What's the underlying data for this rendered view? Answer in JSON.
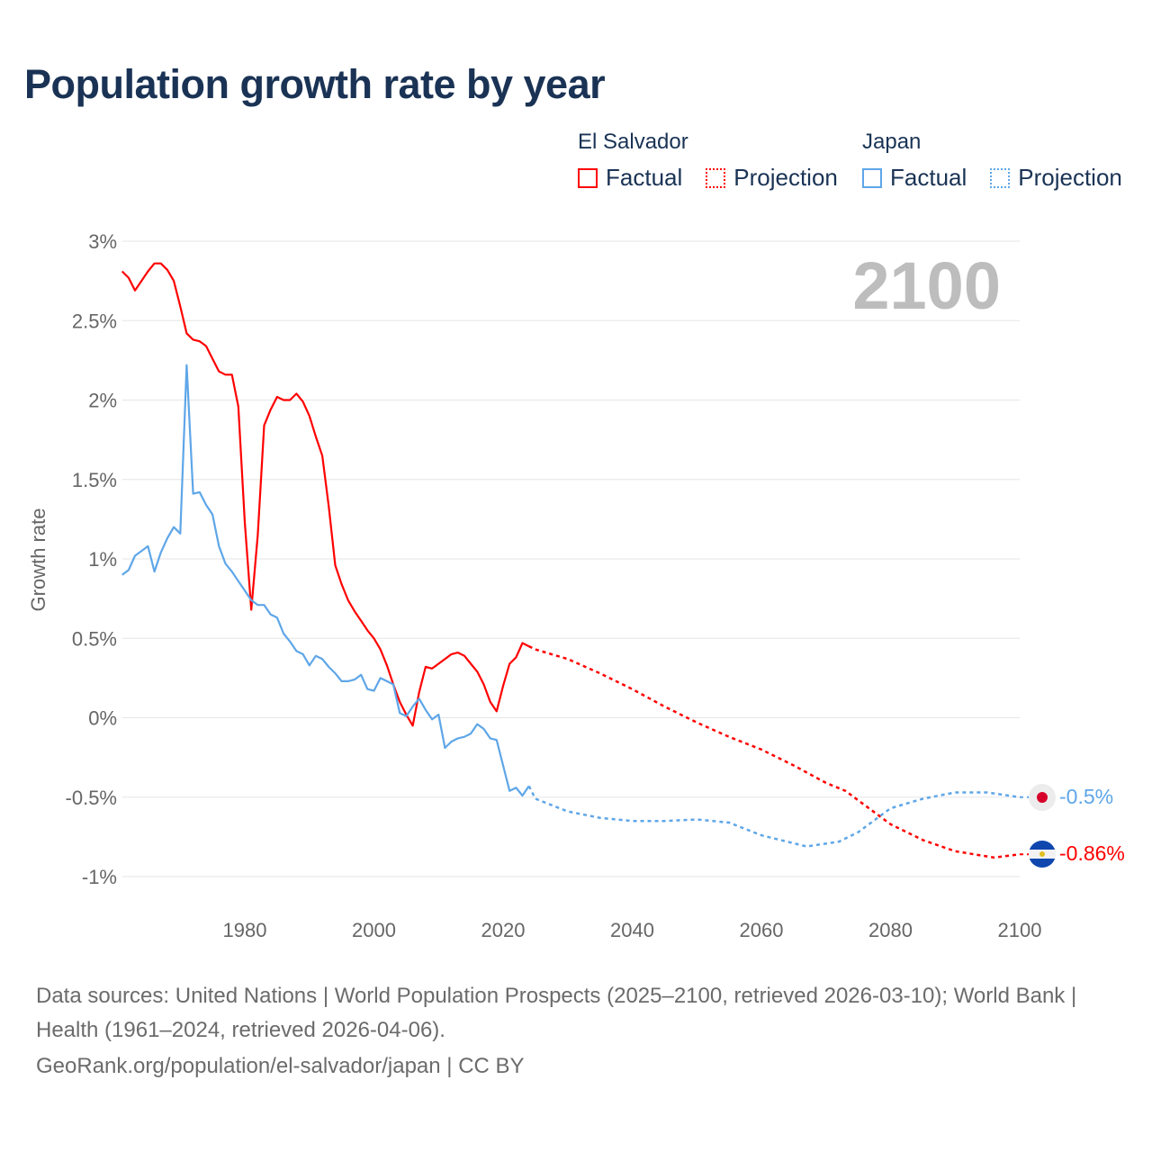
{
  "chart_data": {
    "type": "line",
    "title": "Population growth rate by year",
    "ylabel": "Growth rate",
    "xlabel": "",
    "year_watermark": "2100",
    "xlim": [
      1961,
      2100
    ],
    "ylim": [
      -1.0,
      3.0
    ],
    "x_ticks": [
      1980,
      2000,
      2020,
      2040,
      2060,
      2080,
      2100
    ],
    "x_tick_labels": [
      "1980",
      "2000",
      "2020",
      "2040",
      "2060",
      "2080",
      "2100"
    ],
    "y_ticks": [
      3,
      2.5,
      2,
      1.5,
      1,
      0.5,
      0,
      -0.5,
      -1
    ],
    "y_tick_labels": [
      "3%",
      "2.5%",
      "2%",
      "1.5%",
      "1%",
      "0.5%",
      "0%",
      "-0.5%",
      "-1%"
    ],
    "grid": true,
    "legend_placement": "top-right",
    "legend": [
      {
        "group": "El Salvador",
        "items": [
          "Factual",
          "Projection"
        ]
      },
      {
        "group": "Japan",
        "items": [
          "Factual",
          "Projection"
        ]
      }
    ],
    "series": [
      {
        "name": "El Salvador",
        "color": "#ff0000",
        "end_label": "-0.86%",
        "factual": {
          "x": [
            1961,
            1962,
            1963,
            1964,
            1965,
            1966,
            1967,
            1968,
            1969,
            1970,
            1971,
            1972,
            1973,
            1974,
            1975,
            1976,
            1977,
            1978,
            1979,
            1980,
            1981,
            1982,
            1983,
            1984,
            1985,
            1986,
            1987,
            1988,
            1989,
            1990,
            1991,
            1992,
            1993,
            1994,
            1995,
            1996,
            1997,
            1998,
            1999,
            2000,
            2001,
            2002,
            2003,
            2004,
            2005,
            2006,
            2007,
            2008,
            2009,
            2010,
            2011,
            2012,
            2013,
            2014,
            2015,
            2016,
            2017,
            2018,
            2019,
            2020,
            2021,
            2022,
            2023,
            2024
          ],
          "y": [
            2.81,
            2.77,
            2.69,
            2.75,
            2.81,
            2.86,
            2.86,
            2.82,
            2.75,
            2.59,
            2.42,
            2.38,
            2.37,
            2.34,
            2.26,
            2.18,
            2.16,
            2.16,
            1.96,
            1.23,
            0.68,
            1.15,
            1.84,
            1.94,
            2.02,
            2.0,
            2.0,
            2.04,
            1.99,
            1.9,
            1.77,
            1.65,
            1.33,
            0.96,
            0.84,
            0.74,
            0.67,
            0.61,
            0.55,
            0.5,
            0.43,
            0.33,
            0.21,
            0.1,
            0.02,
            -0.05,
            0.16,
            0.32,
            0.31,
            0.34,
            0.37,
            0.4,
            0.41,
            0.39,
            0.34,
            0.29,
            0.21,
            0.1,
            0.04,
            0.2,
            0.34,
            0.38,
            0.47,
            0.45
          ]
        },
        "projection": {
          "x": [
            2024,
            2025,
            2030,
            2035,
            2040,
            2045,
            2050,
            2055,
            2060,
            2065,
            2070,
            2073,
            2075,
            2080,
            2085,
            2090,
            2096,
            2100
          ],
          "y": [
            0.45,
            0.43,
            0.37,
            0.28,
            0.18,
            0.07,
            -0.03,
            -0.12,
            -0.2,
            -0.3,
            -0.41,
            -0.46,
            -0.52,
            -0.67,
            -0.77,
            -0.84,
            -0.88,
            -0.86
          ]
        }
      },
      {
        "name": "Japan",
        "color": "#5ea6e8",
        "end_label": "-0.5%",
        "factual": {
          "x": [
            1961,
            1962,
            1963,
            1964,
            1965,
            1966,
            1967,
            1968,
            1969,
            1970,
            1971,
            1972,
            1973,
            1974,
            1975,
            1976,
            1977,
            1978,
            1979,
            1980,
            1981,
            1982,
            1983,
            1984,
            1985,
            1986,
            1987,
            1988,
            1989,
            1990,
            1991,
            1992,
            1993,
            1994,
            1995,
            1996,
            1997,
            1998,
            1999,
            2000,
            2001,
            2002,
            2003,
            2004,
            2005,
            2006,
            2007,
            2008,
            2009,
            2010,
            2011,
            2012,
            2013,
            2014,
            2015,
            2016,
            2017,
            2018,
            2019,
            2020,
            2021,
            2022,
            2023,
            2024
          ],
          "y": [
            0.9,
            0.93,
            1.02,
            1.05,
            1.08,
            0.92,
            1.04,
            1.13,
            1.2,
            1.16,
            2.22,
            1.41,
            1.42,
            1.34,
            1.28,
            1.08,
            0.97,
            0.92,
            0.86,
            0.8,
            0.74,
            0.71,
            0.71,
            0.65,
            0.63,
            0.53,
            0.48,
            0.42,
            0.4,
            0.33,
            0.39,
            0.37,
            0.32,
            0.28,
            0.23,
            0.23,
            0.24,
            0.27,
            0.18,
            0.17,
            0.25,
            0.23,
            0.21,
            0.03,
            0.01,
            0.07,
            0.12,
            0.05,
            -0.01,
            0.02,
            -0.19,
            -0.15,
            -0.13,
            -0.12,
            -0.1,
            -0.04,
            -0.07,
            -0.13,
            -0.14,
            -0.3,
            -0.46,
            -0.44,
            -0.49,
            -0.43
          ]
        },
        "projection": {
          "x": [
            2024,
            2025,
            2030,
            2035,
            2040,
            2045,
            2050,
            2055,
            2060,
            2064,
            2067,
            2072,
            2075,
            2080,
            2085,
            2090,
            2095,
            2100
          ],
          "y": [
            -0.43,
            -0.51,
            -0.59,
            -0.63,
            -0.65,
            -0.65,
            -0.64,
            -0.66,
            -0.74,
            -0.78,
            -0.81,
            -0.78,
            -0.72,
            -0.57,
            -0.51,
            -0.47,
            -0.47,
            -0.5
          ]
        }
      }
    ]
  },
  "footer": {
    "sources": "Data sources: United Nations | World Population Prospects (2025–2100, retrieved 2026-03-10); World Bank | Health (1961–2024, retrieved 2026-04-06).",
    "credit": "GeoRank.org/population/el-salvador/japan | CC BY"
  }
}
